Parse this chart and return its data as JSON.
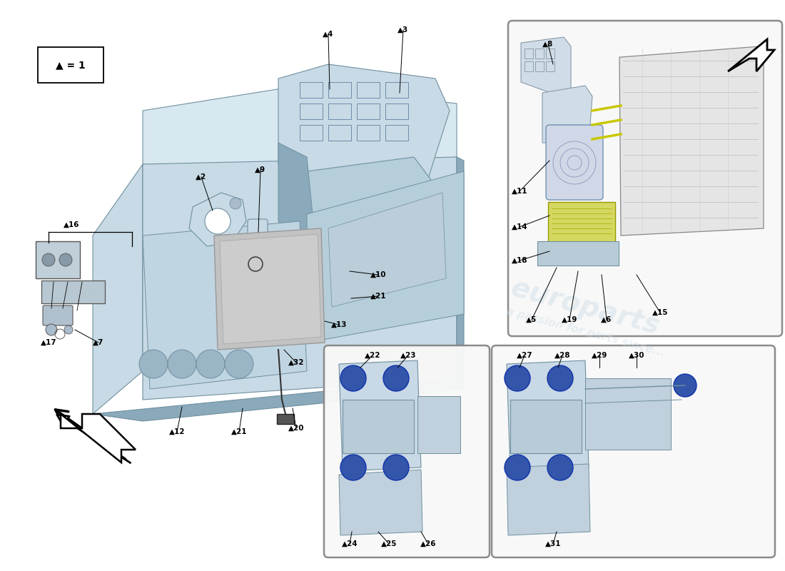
{
  "bg_color": "#ffffff",
  "watermark1": "europarts",
  "watermark2": "a passion for parts since...",
  "main_body_color": "#b5ceda",
  "main_body_edge": "#7090a0",
  "light_blue": "#c8dae5",
  "dark_blue": "#8aaabb",
  "very_light_blue": "#d8e8f0",
  "yellow_green": "#d4d860",
  "inset_bg": "#f8f8f8",
  "inset_edge": "#999999",
  "label_color": "#000000",
  "legend_text": "▲ = 1",
  "part_nums_main": [
    "2",
    "9",
    "4",
    "3",
    "16",
    "17",
    "7",
    "10",
    "21",
    "13",
    "32",
    "12",
    "21",
    "20"
  ],
  "part_nums_inset1": [
    "8",
    "11",
    "14",
    "18",
    "5",
    "19",
    "6",
    "15"
  ],
  "part_nums_inset2": [
    "22",
    "23",
    "24",
    "25",
    "26"
  ],
  "part_nums_inset3": [
    "27",
    "28",
    "29",
    "30",
    "31"
  ]
}
